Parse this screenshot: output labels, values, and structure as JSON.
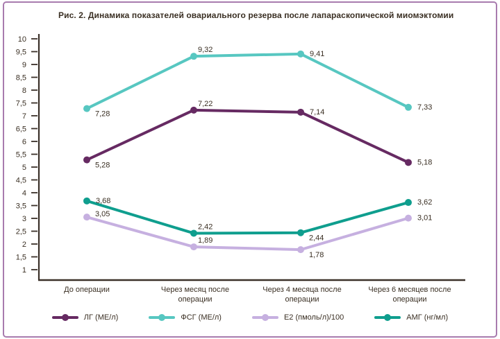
{
  "title": "Рис. 2. Динамика показателей овариального резерва после лапараскопической миомэктомии",
  "colors": {
    "frame_border": "#a87bae",
    "axis": "#3a3028",
    "text": "#3a2f23"
  },
  "chart_data": {
    "type": "line",
    "title": "Рис. 2. Динамика показателей овариального резерва после лапараскопической миомэктомии",
    "categories": [
      "До операции",
      "Через месяц после операции",
      "Через 4 месяца после операции",
      "Через 6 месяцев после операции"
    ],
    "x_labels_display": [
      "До операции",
      "Через месяц после\nоперации",
      "Через 4 месяца после\nоперации",
      "Через 6 месяцев после\nоперации"
    ],
    "y_ticks": [
      "10",
      "9,5",
      "9",
      "8,5",
      "8",
      "7,5",
      "7",
      "6,5",
      "6",
      "5,5",
      "5",
      "4,5",
      "4",
      "3,5",
      "3",
      "2,5",
      "2",
      "1,5",
      "1"
    ],
    "ylim": [
      1,
      10
    ],
    "y_step": 0.5,
    "grid": false,
    "legend_position": "bottom",
    "series": [
      {
        "name": "ЛГ (МЕ/л)",
        "color": "#662a62",
        "values": [
          5.28,
          7.22,
          7.14,
          5.18
        ],
        "point_labels": [
          "5,28",
          "7,22",
          "7,14",
          "5,18"
        ],
        "label_pos": [
          "below",
          "above",
          "right",
          "right"
        ]
      },
      {
        "name": "ФСГ (МЕ/л)",
        "color": "#57c7c1",
        "values": [
          7.28,
          9.32,
          9.41,
          7.33
        ],
        "point_labels": [
          "7,28",
          "9,32",
          "9,41",
          "7,33"
        ],
        "label_pos": [
          "below",
          "above",
          "right",
          "right"
        ]
      },
      {
        "name": "Е2 (пмоль/л)/100",
        "color": "#c6b0e0",
        "values": [
          3.05,
          1.89,
          1.78,
          3.01
        ],
        "point_labels": [
          "3,05",
          "1,89",
          "1,78",
          "3,01"
        ],
        "label_pos": [
          "above-right",
          "above",
          "below",
          "right"
        ]
      },
      {
        "name": "АМГ (нг/мл)",
        "color": "#0f9e8e",
        "values": [
          3.68,
          2.42,
          2.44,
          3.62
        ],
        "point_labels": [
          "3,68",
          "2,42",
          "2,44",
          "3,62"
        ],
        "label_pos": [
          "right",
          "above",
          "below",
          "right"
        ]
      }
    ]
  }
}
